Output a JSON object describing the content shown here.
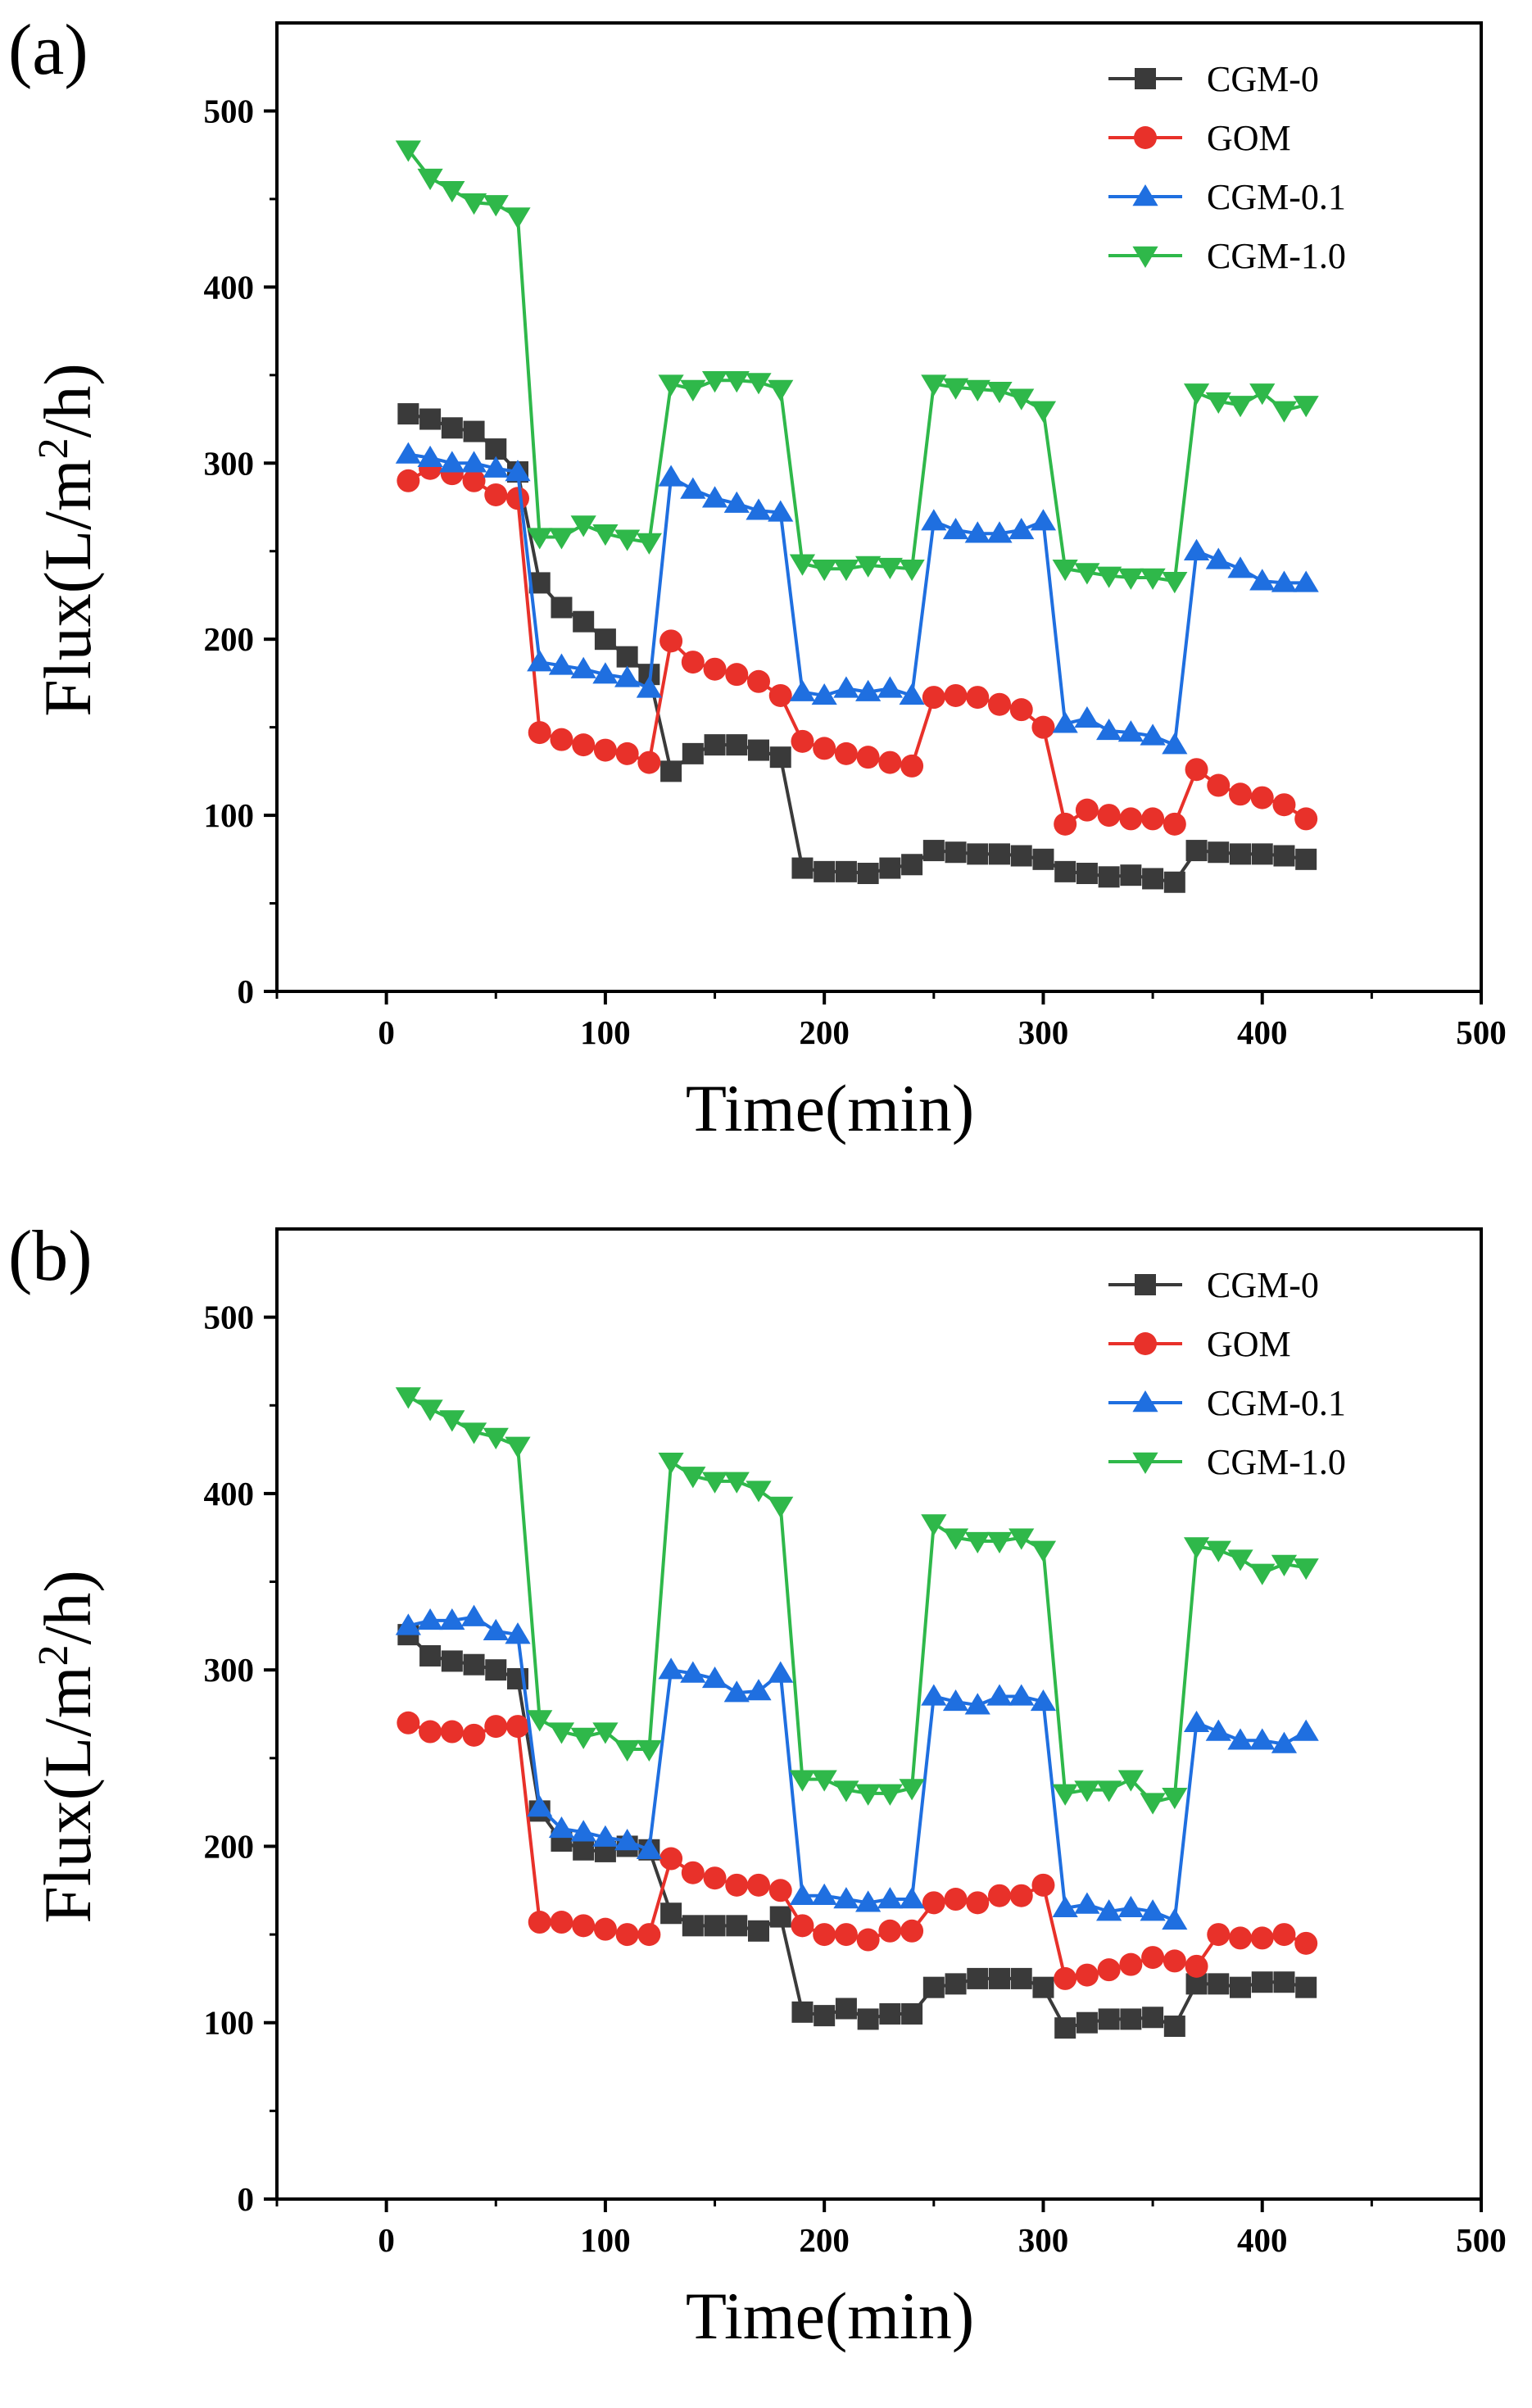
{
  "chart_data": [
    {
      "type": "line",
      "panel_label": "(a)",
      "xlabel": "Time(min)",
      "ylabel": "Flux(L/m²/h)",
      "ylabel_parts": {
        "pre": "Flux(L/m",
        "sup": "2",
        "post": "/h)"
      },
      "xlim": [
        -50,
        500
      ],
      "ylim": [
        0,
        550
      ],
      "xticks": [
        0,
        100,
        200,
        300,
        400,
        500
      ],
      "yticks": [
        0,
        100,
        200,
        300,
        400,
        500
      ],
      "legend_position": "top-right",
      "x": [
        10,
        20,
        30,
        40,
        50,
        60,
        70,
        80,
        90,
        100,
        110,
        120,
        130,
        140,
        150,
        160,
        170,
        180,
        190,
        200,
        210,
        220,
        230,
        240,
        250,
        260,
        270,
        280,
        290,
        300,
        310,
        320,
        330,
        340,
        350,
        360,
        370,
        380,
        390,
        400,
        410,
        420
      ],
      "series": [
        {
          "name": "CGM-0",
          "color": "#3a3a3a",
          "marker": "square",
          "values": [
            328,
            325,
            320,
            318,
            308,
            295,
            232,
            218,
            210,
            200,
            190,
            180,
            125,
            135,
            140,
            140,
            137,
            133,
            70,
            68,
            68,
            67,
            70,
            72,
            80,
            79,
            78,
            78,
            77,
            75,
            68,
            67,
            65,
            66,
            64,
            62,
            80,
            79,
            78,
            78,
            77,
            75
          ]
        },
        {
          "name": "GOM",
          "color": "#e8312a",
          "marker": "circle",
          "values": [
            290,
            297,
            294,
            290,
            282,
            280,
            147,
            143,
            140,
            137,
            135,
            130,
            199,
            187,
            183,
            180,
            176,
            168,
            142,
            138,
            135,
            133,
            130,
            128,
            167,
            168,
            167,
            163,
            160,
            150,
            95,
            103,
            100,
            98,
            98,
            95,
            126,
            117,
            112,
            110,
            106,
            98
          ]
        },
        {
          "name": "CGM-0.1",
          "color": "#1f6fe0",
          "marker": "triangle-up",
          "values": [
            305,
            303,
            300,
            300,
            297,
            295,
            187,
            185,
            183,
            180,
            178,
            172,
            292,
            285,
            280,
            277,
            273,
            272,
            170,
            168,
            172,
            170,
            172,
            168,
            267,
            262,
            260,
            260,
            262,
            267,
            152,
            155,
            148,
            147,
            145,
            140,
            250,
            245,
            240,
            233,
            232,
            232
          ]
        },
        {
          "name": "CGM-1.0",
          "color": "#2fb84a",
          "marker": "triangle-down",
          "values": [
            478,
            462,
            455,
            448,
            447,
            440,
            258,
            258,
            265,
            260,
            257,
            255,
            345,
            342,
            347,
            347,
            346,
            342,
            243,
            240,
            240,
            242,
            241,
            240,
            345,
            343,
            342,
            341,
            337,
            330,
            240,
            238,
            236,
            235,
            235,
            233,
            340,
            335,
            333,
            340,
            330,
            333
          ]
        }
      ]
    },
    {
      "type": "line",
      "panel_label": "(b)",
      "xlabel": "Time(min)",
      "ylabel": "Flux(L/m²/h)",
      "ylabel_parts": {
        "pre": "Flux(L/m",
        "sup": "2",
        "post": "/h)"
      },
      "xlim": [
        -50,
        500
      ],
      "ylim": [
        0,
        550
      ],
      "xticks": [
        0,
        100,
        200,
        300,
        400,
        500
      ],
      "yticks": [
        0,
        100,
        200,
        300,
        400,
        500
      ],
      "legend_position": "top-right",
      "x": [
        10,
        20,
        30,
        40,
        50,
        60,
        70,
        80,
        90,
        100,
        110,
        120,
        130,
        140,
        150,
        160,
        170,
        180,
        190,
        200,
        210,
        220,
        230,
        240,
        250,
        260,
        270,
        280,
        290,
        300,
        310,
        320,
        330,
        340,
        350,
        360,
        370,
        380,
        390,
        400,
        410,
        420
      ],
      "series": [
        {
          "name": "CGM-0",
          "color": "#3a3a3a",
          "marker": "square",
          "values": [
            320,
            308,
            305,
            303,
            300,
            295,
            220,
            203,
            198,
            197,
            200,
            198,
            162,
            155,
            155,
            155,
            152,
            160,
            106,
            104,
            108,
            102,
            105,
            105,
            120,
            122,
            125,
            125,
            125,
            120,
            97,
            100,
            102,
            102,
            103,
            98,
            122,
            122,
            120,
            123,
            123,
            120
          ]
        },
        {
          "name": "GOM",
          "color": "#e8312a",
          "marker": "circle",
          "values": [
            270,
            265,
            265,
            263,
            268,
            268,
            157,
            157,
            155,
            153,
            150,
            150,
            193,
            185,
            182,
            178,
            178,
            175,
            155,
            150,
            150,
            147,
            152,
            152,
            168,
            170,
            168,
            172,
            172,
            178,
            125,
            127,
            130,
            133,
            137,
            135,
            132,
            150,
            148,
            148,
            150,
            145
          ]
        },
        {
          "name": "CGM-0.1",
          "color": "#1f6fe0",
          "marker": "triangle-up",
          "values": [
            325,
            328,
            328,
            330,
            322,
            320,
            222,
            210,
            208,
            205,
            203,
            198,
            300,
            298,
            295,
            287,
            288,
            298,
            172,
            172,
            170,
            168,
            170,
            170,
            285,
            282,
            280,
            285,
            285,
            282,
            165,
            167,
            163,
            165,
            163,
            158,
            270,
            265,
            260,
            260,
            258,
            265
          ]
        },
        {
          "name": "CGM-1.0",
          "color": "#2fb84a",
          "marker": "triangle-down",
          "values": [
            455,
            448,
            442,
            435,
            432,
            427,
            272,
            265,
            262,
            265,
            255,
            255,
            418,
            410,
            407,
            407,
            402,
            393,
            238,
            238,
            232,
            230,
            230,
            233,
            383,
            375,
            373,
            373,
            375,
            368,
            230,
            232,
            232,
            238,
            225,
            228,
            370,
            368,
            363,
            355,
            360,
            358
          ]
        }
      ]
    }
  ]
}
